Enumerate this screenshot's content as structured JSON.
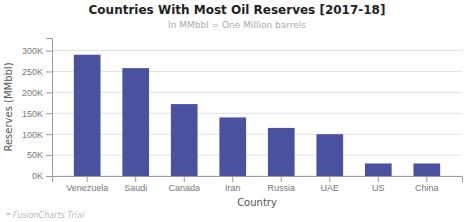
{
  "chart_data": {
    "type": "bar",
    "title": "Countries With Most Oil Reserves [2017-18]",
    "subtitle": "In MMbbl = One Million barrels",
    "categories": [
      "Venezuela",
      "Saudi",
      "Canada",
      "Iran",
      "Russia",
      "UAE",
      "US",
      "China"
    ],
    "values": [
      290000,
      258000,
      172000,
      140000,
      115000,
      100000,
      30000,
      30000
    ],
    "color": "#4a52a0",
    "xlabel": "Country",
    "ylabel": "Reserves (MMbbl)",
    "ylim": [
      0,
      330000
    ],
    "yticks": [
      {
        "value": 0,
        "label": "0K"
      },
      {
        "value": 50000,
        "label": "50K"
      },
      {
        "value": 100000,
        "label": "100K"
      },
      {
        "value": 150000,
        "label": "150K"
      },
      {
        "value": 200000,
        "label": "200K"
      },
      {
        "value": 250000,
        "label": "250K"
      },
      {
        "value": 300000,
        "label": "300K"
      }
    ],
    "grid": true,
    "annotations": [
      "❝  FusionCharts Trial"
    ]
  }
}
